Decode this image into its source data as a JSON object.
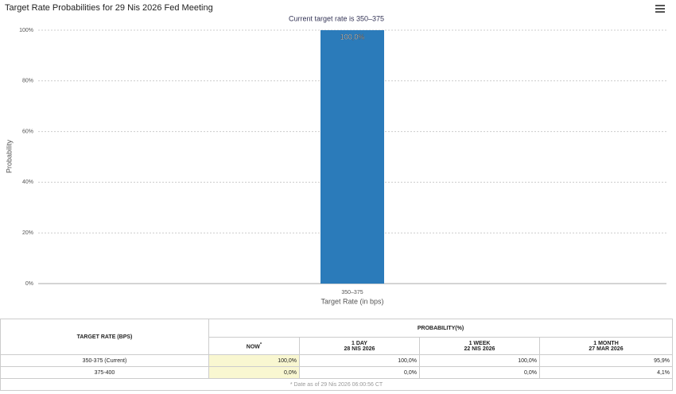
{
  "chart_data": {
    "type": "bar",
    "title": "Target Rate Probabilities for 29 Nis 2026 Fed Meeting",
    "subtitle": "Current target rate is 350–375",
    "categories": [
      "350–375"
    ],
    "values": [
      100
    ],
    "value_labels": [
      "100,0%"
    ],
    "color": "#2b7bba",
    "x_label": "Target Rate (in bps)",
    "y_label": "Probability",
    "ylim": [
      0,
      100
    ],
    "yticks": [
      {
        "value": 0,
        "label": "0%"
      },
      {
        "value": 20,
        "label": "20%"
      },
      {
        "value": 40,
        "label": "40%"
      },
      {
        "value": 60,
        "label": "60%"
      },
      {
        "value": 80,
        "label": "80%"
      },
      {
        "value": 100,
        "label": "100%"
      }
    ],
    "grid": true
  },
  "table": {
    "header": "TARGET RATE (BPS)",
    "group_header": "PROBABILITY(%)",
    "columns": [
      {
        "label": "NOW",
        "marker": "*"
      },
      {
        "label": "1 DAY",
        "date": "28 NIS 2026"
      },
      {
        "label": "1 WEEK",
        "date": "22 NIS 2026"
      },
      {
        "label": "1 MONTH",
        "date": "27 MAR 2026"
      }
    ],
    "rows": [
      [
        "350-375 (Current)",
        "100,0%",
        "100,0%",
        "100,0%",
        "95,9%"
      ],
      [
        "375-400",
        "0,0%",
        "0,0%",
        "0,0%",
        "4,1%"
      ]
    ],
    "footnote": "* Date as of 29 Nis 2026 06:00:56 CT"
  }
}
